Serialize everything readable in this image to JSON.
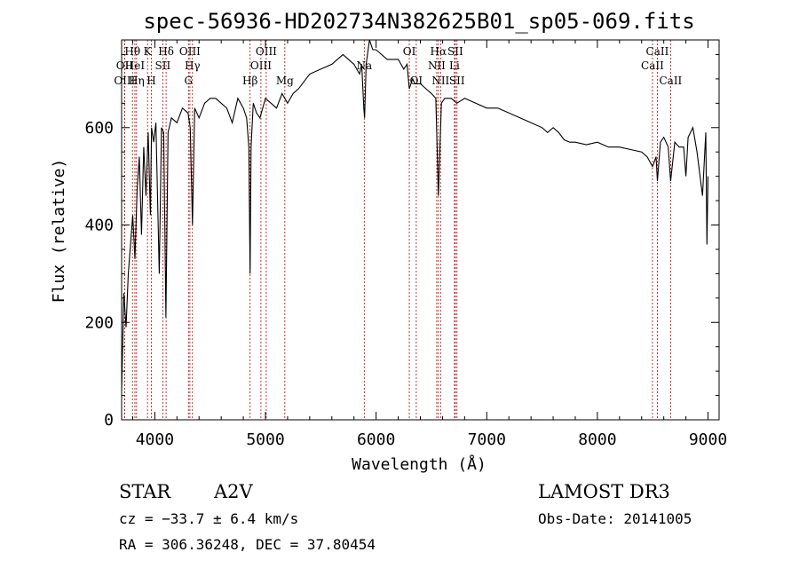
{
  "chart_data": {
    "type": "line",
    "title": "spec-56936-HD202734N382625B01_sp05-069.fits",
    "xlabel": "Wavelength (Å)",
    "ylabel": "Flux (relative)",
    "xlim": [
      3700,
      9100
    ],
    "ylim": [
      0,
      780
    ],
    "xticks": [
      4000,
      5000,
      6000,
      7000,
      8000,
      9000
    ],
    "yticks": [
      0,
      200,
      400,
      600
    ],
    "grid": false,
    "series": [
      {
        "x": [
          3700,
          3720,
          3740,
          3760,
          3780,
          3800,
          3820,
          3840,
          3860,
          3880,
          3900,
          3920,
          3940,
          3960,
          3970,
          3990,
          4010,
          4040,
          4060,
          4080,
          4100,
          4120,
          4150,
          4200,
          4250,
          4300,
          4320,
          4340,
          4360,
          4400,
          4450,
          4500,
          4550,
          4600,
          4650,
          4700,
          4750,
          4800,
          4830,
          4850,
          4861,
          4870,
          4890,
          4920,
          4950,
          5000,
          5050,
          5100,
          5150,
          5200,
          5250,
          5300,
          5400,
          5500,
          5600,
          5700,
          5800,
          5850,
          5870,
          5889,
          5896,
          5910,
          5940,
          5970,
          6000,
          6050,
          6100,
          6150,
          6200,
          6250,
          6280,
          6300,
          6330,
          6350,
          6400,
          6450,
          6500,
          6540,
          6563,
          6590,
          6620,
          6680,
          6730,
          6800,
          6900,
          7000,
          7100,
          7200,
          7300,
          7400,
          7500,
          7550,
          7600,
          7650,
          7700,
          7750,
          7800,
          7900,
          8000,
          8100,
          8200,
          8300,
          8400,
          8450,
          8498,
          8530,
          8542,
          8570,
          8600,
          8640,
          8662,
          8700,
          8740,
          8780,
          8800,
          8820,
          8863,
          8900,
          8950,
          8980,
          8990,
          9000
        ],
        "y": [
          60,
          260,
          190,
          300,
          360,
          420,
          330,
          470,
          540,
          380,
          560,
          460,
          590,
          420,
          600,
          570,
          610,
          300,
          600,
          590,
          210,
          590,
          620,
          610,
          640,
          630,
          600,
          400,
          640,
          620,
          650,
          660,
          660,
          650,
          640,
          610,
          660,
          640,
          620,
          560,
          300,
          560,
          650,
          630,
          620,
          660,
          650,
          640,
          670,
          650,
          670,
          680,
          710,
          720,
          730,
          750,
          730,
          710,
          730,
          640,
          620,
          730,
          780,
          760,
          760,
          750,
          740,
          740,
          740,
          720,
          730,
          680,
          700,
          690,
          690,
          680,
          670,
          660,
          460,
          650,
          660,
          660,
          650,
          660,
          650,
          640,
          640,
          630,
          620,
          610,
          600,
          590,
          600,
          590,
          575,
          570,
          570,
          565,
          570,
          560,
          560,
          555,
          550,
          540,
          520,
          540,
          490,
          570,
          580,
          560,
          490,
          570,
          560,
          560,
          500,
          580,
          600,
          550,
          460,
          590,
          360,
          500
        ]
      }
    ],
    "lines": [
      {
        "label": "OII",
        "x": 3727,
        "row": 2
      },
      {
        "label": "OIII",
        "x": 3727,
        "row": 3
      },
      {
        "label": "Hθ",
        "x": 3798,
        "row": 1
      },
      {
        "label": "HeI",
        "x": 3820,
        "row": 2
      },
      {
        "label": "Hη",
        "x": 3835,
        "row": 3
      },
      {
        "label": "K",
        "x": 3934,
        "row": 1
      },
      {
        "label": "H",
        "x": 3969,
        "row": 3
      },
      {
        "label": "SII",
        "x": 4072,
        "row": 2
      },
      {
        "label": "Hδ",
        "x": 4102,
        "row": 1
      },
      {
        "label": "OIII",
        "x": 4317,
        "row": 1
      },
      {
        "label": "Hγ",
        "x": 4340,
        "row": 2
      },
      {
        "label": "G",
        "x": 4304,
        "row": 3
      },
      {
        "label": "Hβ",
        "x": 4861,
        "row": 3
      },
      {
        "label": "OIII",
        "x": 4959,
        "row": 2
      },
      {
        "label": "OIII",
        "x": 5007,
        "row": 1
      },
      {
        "label": "Mg",
        "x": 5175,
        "row": 3
      },
      {
        "label": "Na",
        "x": 5893,
        "row": 2
      },
      {
        "label": "OI",
        "x": 6300,
        "row": 1
      },
      {
        "label": "OI",
        "x": 6363,
        "row": 3
      },
      {
        "label": "NII",
        "x": 6548,
        "row": 2
      },
      {
        "label": "Hα",
        "x": 6563,
        "row": 1
      },
      {
        "label": "NII",
        "x": 6583,
        "row": 3
      },
      {
        "label": "SII",
        "x": 6716,
        "row": 1
      },
      {
        "label": "Li",
        "x": 6708,
        "row": 2
      },
      {
        "label": "SII",
        "x": 6731,
        "row": 3
      },
      {
        "label": "CaII",
        "x": 8498,
        "row": 2
      },
      {
        "label": "CaII",
        "x": 8542,
        "row": 1
      },
      {
        "label": "CaII",
        "x": 8662,
        "row": 3
      }
    ]
  },
  "info": {
    "object_type": "STAR",
    "spectral_class": "A2V",
    "cz": "cz = −33.7 ± 6.4 km/s",
    "coords": "RA = 306.36248, DEC =  37.80454",
    "survey": "LAMOST DR3",
    "obs_date": "Obs-Date: 20141005"
  },
  "colors": {
    "spectrum": "#000000",
    "lines": "#c00000",
    "axes": "#000000"
  }
}
